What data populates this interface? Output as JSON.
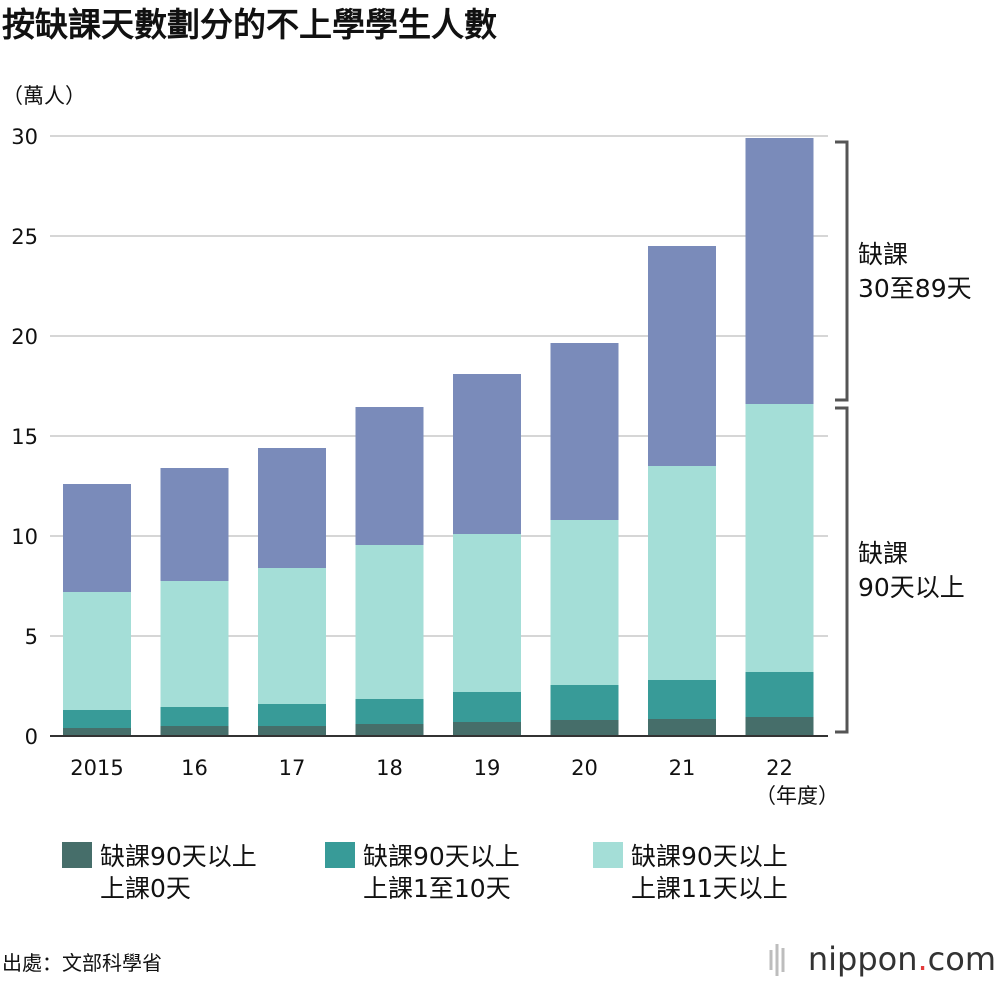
{
  "chart_data": {
    "type": "bar",
    "stacked": true,
    "title": "按缺課天數劃分的不上學學生人數",
    "ylabel": "（萬人）",
    "ylim": [
      0,
      30
    ],
    "yticks": [
      "0",
      "5",
      "10",
      "15",
      "20",
      "25",
      "30"
    ],
    "ytick_values": [
      0,
      5,
      10,
      15,
      20,
      25,
      30
    ],
    "categories": [
      "2015",
      "16",
      "17",
      "18",
      "19",
      "20",
      "21",
      "22"
    ],
    "xlabel": "（年度）",
    "series": [
      {
        "name": "缺課90天以上 上課0天",
        "legend_line1": "缺課90天以上",
        "legend_line2": "上課0天",
        "color": "#466e6a",
        "values": [
          0.4,
          0.5,
          0.5,
          0.6,
          0.7,
          0.8,
          0.85,
          0.95
        ]
      },
      {
        "name": "缺課90天以上 上課1至10天",
        "legend_line1": "缺課90天以上",
        "legend_line2": "上課1至10天",
        "color": "#389b98",
        "values": [
          0.9,
          0.95,
          1.1,
          1.25,
          1.5,
          1.75,
          1.95,
          2.25
        ]
      },
      {
        "name": "缺課90天以上 上課11天以上",
        "legend_line1": "缺課90天以上",
        "legend_line2": "上課11天以上",
        "color": "#a4ded7",
        "values": [
          5.9,
          6.3,
          6.8,
          7.7,
          7.9,
          8.25,
          10.7,
          13.4
        ]
      },
      {
        "name": "缺課30至89天",
        "color": "#7a8bba",
        "values": [
          5.4,
          5.65,
          6.0,
          6.9,
          8.0,
          8.85,
          11.0,
          13.3
        ]
      }
    ],
    "annotations": [
      {
        "line1": "缺課",
        "line2": "30至89天",
        "range": [
          16.6,
          29.9
        ]
      },
      {
        "line1": "缺課",
        "line2": "90天以上",
        "range": [
          0,
          16.6
        ]
      }
    ]
  },
  "footer": {
    "source": "出處：文部科學省",
    "brand_name": "nippon",
    "brand_dot": ".",
    "brand_tld": "com"
  }
}
